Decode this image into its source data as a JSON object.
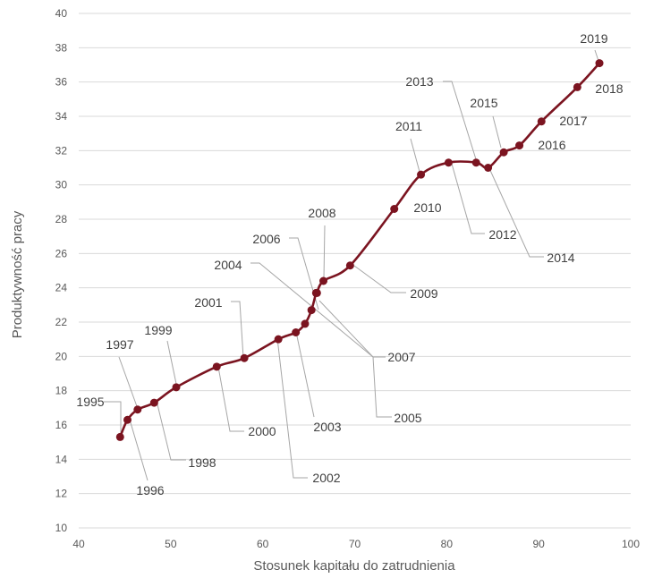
{
  "chart_data": {
    "type": "scatter",
    "title": "",
    "xlabel": "Stosunek kapitału do zatrudnienia",
    "ylabel": "Produktywność pracy",
    "xlim": [
      40,
      100
    ],
    "ylim": [
      10,
      40
    ],
    "x_ticks": [
      "40",
      "50",
      "60",
      "70",
      "80",
      "90",
      "100"
    ],
    "y_ticks": [
      "10",
      "12",
      "14",
      "16",
      "18",
      "20",
      "22",
      "24",
      "26",
      "28",
      "30",
      "32",
      "34",
      "36",
      "38",
      "40"
    ],
    "grid": "horizontal",
    "line_color": "#7b1420",
    "points": [
      {
        "label": "1995",
        "x": 44.5,
        "y": 15.3
      },
      {
        "label": "1996",
        "x": 45.3,
        "y": 16.3
      },
      {
        "label": "1997",
        "x": 46.4,
        "y": 16.9
      },
      {
        "label": "1998",
        "x": 48.2,
        "y": 17.3
      },
      {
        "label": "1999",
        "x": 50.6,
        "y": 18.2
      },
      {
        "label": "2000",
        "x": 55.0,
        "y": 19.4
      },
      {
        "label": "2001",
        "x": 58.0,
        "y": 19.9
      },
      {
        "label": "2002",
        "x": 61.7,
        "y": 21.0
      },
      {
        "label": "2003",
        "x": 63.6,
        "y": 21.4
      },
      {
        "label": "2004",
        "x": 64.6,
        "y": 21.9
      },
      {
        "label": "2005",
        "x": 65.3,
        "y": 22.7
      },
      {
        "label": "2006",
        "x": 65.8,
        "y": 23.7
      },
      {
        "label": "2007",
        "x": 65.9,
        "y": 23.7
      },
      {
        "label": "2008",
        "x": 66.6,
        "y": 24.4
      },
      {
        "label": "2009",
        "x": 69.5,
        "y": 25.3
      },
      {
        "label": "2010",
        "x": 74.3,
        "y": 28.6
      },
      {
        "label": "2011",
        "x": 77.2,
        "y": 30.6
      },
      {
        "label": "2012",
        "x": 80.2,
        "y": 31.3
      },
      {
        "label": "2013",
        "x": 83.2,
        "y": 31.3
      },
      {
        "label": "2014",
        "x": 84.5,
        "y": 31.0
      },
      {
        "label": "2015",
        "x": 86.2,
        "y": 31.9
      },
      {
        "label": "2016",
        "x": 87.9,
        "y": 32.3
      },
      {
        "label": "2017",
        "x": 90.3,
        "y": 33.7
      },
      {
        "label": "2018",
        "x": 94.2,
        "y": 35.7
      },
      {
        "label": "2019",
        "x": 96.6,
        "y": 37.1
      }
    ]
  }
}
